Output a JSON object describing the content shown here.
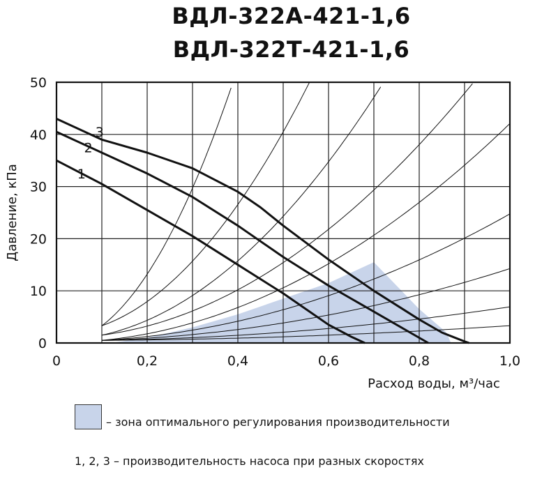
{
  "title_line1": "ВДЛ-322А-421-1,6",
  "title_line2": "ВДЛ-322Т-421-1,6",
  "chart_data": {
    "type": "line",
    "xlabel": "Расход воды, м³/час",
    "ylabel": "Давление, кПа",
    "xlim": [
      0,
      1.0
    ],
    "ylim": [
      0,
      50
    ],
    "x_ticks": [
      "0",
      "0,2",
      "0,4",
      "0,6",
      "0,8",
      "1,0"
    ],
    "y_ticks": [
      "0",
      "10",
      "20",
      "30",
      "40",
      "50"
    ],
    "grid": true,
    "series": [
      {
        "name": "1",
        "x": [
          0,
          0.1,
          0.2,
          0.3,
          0.4,
          0.5,
          0.55,
          0.6,
          0.65,
          0.68
        ],
        "y": [
          35,
          30.5,
          25.5,
          20.5,
          15,
          9.5,
          6.5,
          3.5,
          1.2,
          0
        ]
      },
      {
        "name": "2",
        "x": [
          0,
          0.1,
          0.2,
          0.3,
          0.4,
          0.5,
          0.6,
          0.7,
          0.75,
          0.8,
          0.82
        ],
        "y": [
          40.5,
          36.5,
          32.5,
          28,
          22.5,
          16.5,
          11,
          6,
          3.5,
          1,
          0
        ]
      },
      {
        "name": "3",
        "x": [
          0,
          0.1,
          0.2,
          0.3,
          0.4,
          0.45,
          0.5,
          0.6,
          0.7,
          0.8,
          0.85,
          0.9,
          0.91
        ],
        "y": [
          43,
          39,
          36.5,
          33.5,
          29,
          26,
          22.5,
          16,
          10,
          4.5,
          2,
          0.3,
          0
        ]
      }
    ],
    "system_curves": [
      3.3,
      1.55,
      0.95,
      0.58,
      0.42,
      0.245,
      0.139,
      0.065,
      0.0285
    ],
    "optimal_zone": {
      "upper": [
        [
          0.12,
          0
        ],
        [
          0.2,
          1
        ],
        [
          0.3,
          3
        ],
        [
          0.4,
          5.5
        ],
        [
          0.5,
          8.5
        ],
        [
          0.6,
          11.5
        ],
        [
          0.7,
          15.5
        ]
      ],
      "lower": [
        [
          0.7,
          15.5
        ],
        [
          0.8,
          6.5
        ],
        [
          0.86,
          2
        ],
        [
          0.87,
          0
        ]
      ],
      "color": "#c8d4ea"
    },
    "curve_labels": [
      "1",
      "2",
      "3"
    ]
  },
  "legend": {
    "zone_text": "– зона оптимального регулирования производительности",
    "curves_text": "1, 2, 3 – производительность насоса при разных скоростях",
    "zone_color": "#c8d4ea"
  }
}
